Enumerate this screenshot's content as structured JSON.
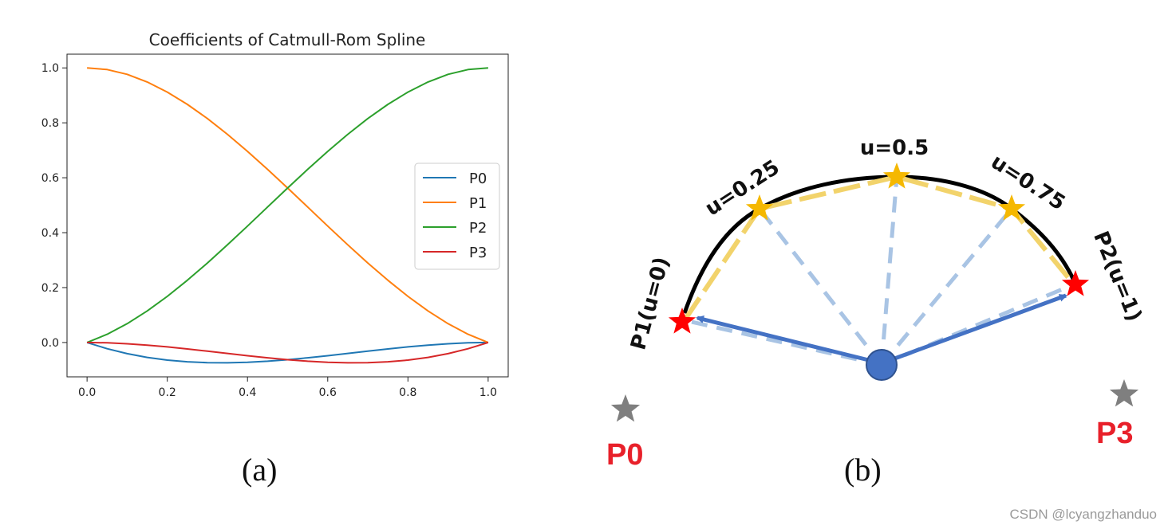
{
  "chart_data": {
    "type": "line",
    "title": "Coefficients of Catmull-Rom Spline",
    "xlabel": "",
    "ylabel": "",
    "xlim": [
      -0.05,
      1.05
    ],
    "ylim": [
      -0.125,
      1.05
    ],
    "xticks": [
      "0.0",
      "0.2",
      "0.4",
      "0.6",
      "0.8",
      "1.0"
    ],
    "yticks": [
      "0.0",
      "0.2",
      "0.4",
      "0.6",
      "0.8",
      "1.0"
    ],
    "x": [
      0.0,
      0.05,
      0.1,
      0.15,
      0.2,
      0.25,
      0.3,
      0.35,
      0.4,
      0.45,
      0.5,
      0.55,
      0.6,
      0.65,
      0.7,
      0.75,
      0.8,
      0.85,
      0.9,
      0.95,
      1.0
    ],
    "series": [
      {
        "name": "P0",
        "color": "#1f77b4",
        "values": [
          0.0,
          -0.0226,
          -0.0405,
          -0.0542,
          -0.064,
          -0.0703,
          -0.0735,
          -0.0739,
          -0.072,
          -0.0681,
          -0.0625,
          -0.0557,
          -0.048,
          -0.0397,
          -0.0315,
          -0.0234,
          -0.016,
          -0.0096,
          -0.0045,
          -0.0012,
          0.0
        ]
      },
      {
        "name": "P1",
        "color": "#ff7f0e",
        "values": [
          1.0,
          0.9939,
          0.9765,
          0.9488,
          0.912,
          0.8672,
          0.8155,
          0.758,
          0.696,
          0.6304,
          0.5625,
          0.4934,
          0.424,
          0.3558,
          0.2895,
          0.2266,
          0.168,
          0.115,
          0.0685,
          0.0299,
          0.0
        ]
      },
      {
        "name": "P2",
        "color": "#2ca02c",
        "values": [
          0.0,
          0.0299,
          0.0685,
          0.115,
          0.168,
          0.2266,
          0.2895,
          0.3558,
          0.424,
          0.4934,
          0.5625,
          0.6304,
          0.696,
          0.758,
          0.8155,
          0.8672,
          0.912,
          0.9488,
          0.9765,
          0.9939,
          1.0
        ]
      },
      {
        "name": "P3",
        "color": "#d62728",
        "values": [
          0.0,
          -0.0012,
          -0.0045,
          -0.0096,
          -0.016,
          -0.0234,
          -0.0315,
          -0.0397,
          -0.048,
          -0.0557,
          -0.0625,
          -0.0681,
          -0.072,
          -0.0739,
          -0.0735,
          -0.0703,
          -0.064,
          -0.0542,
          -0.0405,
          -0.0226,
          0.0
        ]
      }
    ],
    "legend": "center-right",
    "grid": false
  },
  "captions": {
    "a": "(a)",
    "b": "(b)"
  },
  "diagram": {
    "labels": {
      "u025": "u=0.25",
      "u05": "u=0.5",
      "u075": "u=0.75",
      "p1": "P1(u=0)",
      "p2": "P2(u=1)",
      "p0": "P0",
      "p3": "P3"
    },
    "colors": {
      "curve": "#000000",
      "chord": "#f2d36b",
      "ray": "#a9c4e4",
      "arrow": "#4472c4",
      "center": "#4472c4",
      "endpoint_star": "#ff0000",
      "sample_star": "#f5b800",
      "control_star": "#7f7f7f",
      "control_label": "#e8202a"
    }
  },
  "watermark": "CSDN @lcyangzhanduo"
}
